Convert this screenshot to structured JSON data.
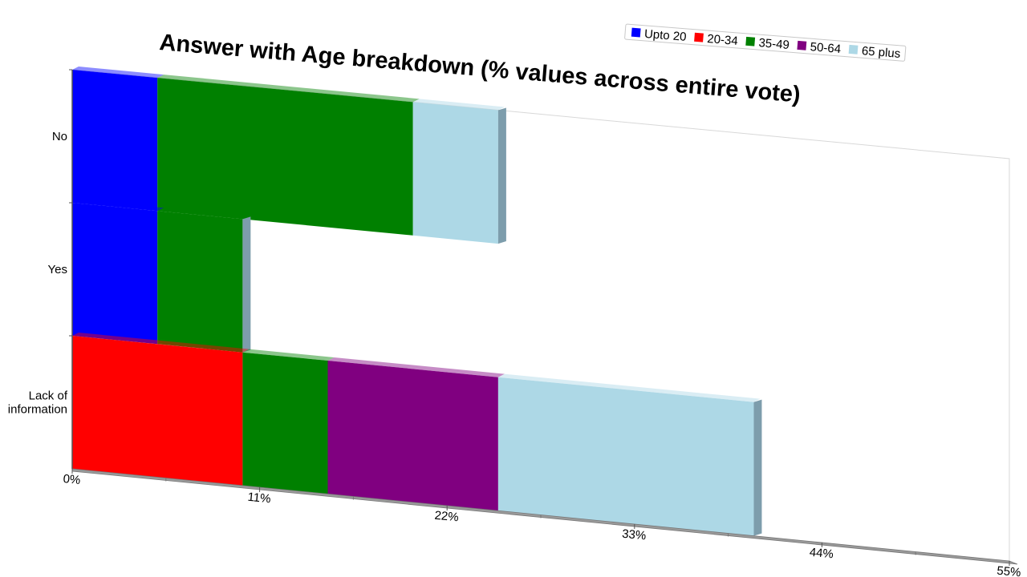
{
  "chart_data": {
    "type": "bar",
    "orientation": "horizontal",
    "stacked": true,
    "title": "Answer with Age breakdown (% values across entire vote)",
    "categories": [
      "No",
      "Yes",
      "Lack of information"
    ],
    "category_lines": [
      [
        "No"
      ],
      [
        "Yes"
      ],
      [
        "Lack of",
        "information"
      ]
    ],
    "series": [
      {
        "name": "Upto 20",
        "color": "#0000ff",
        "values": [
          5,
          5,
          0
        ]
      },
      {
        "name": "20-34",
        "color": "#ff0000",
        "values": [
          0,
          0,
          10
        ]
      },
      {
        "name": "35-49",
        "color": "#008000",
        "values": [
          15,
          5,
          5
        ]
      },
      {
        "name": "50-64",
        "color": "#800080",
        "values": [
          0,
          0,
          10
        ]
      },
      {
        "name": "65 plus",
        "color": "#add8e6",
        "values": [
          5,
          0,
          15
        ]
      }
    ],
    "xlim": [
      0,
      55
    ],
    "xticks": [
      "0%",
      "11%",
      "22%",
      "33%",
      "44%",
      "55%"
    ],
    "grid": false,
    "legend_position": "top-right",
    "view": "3d-perspective"
  }
}
